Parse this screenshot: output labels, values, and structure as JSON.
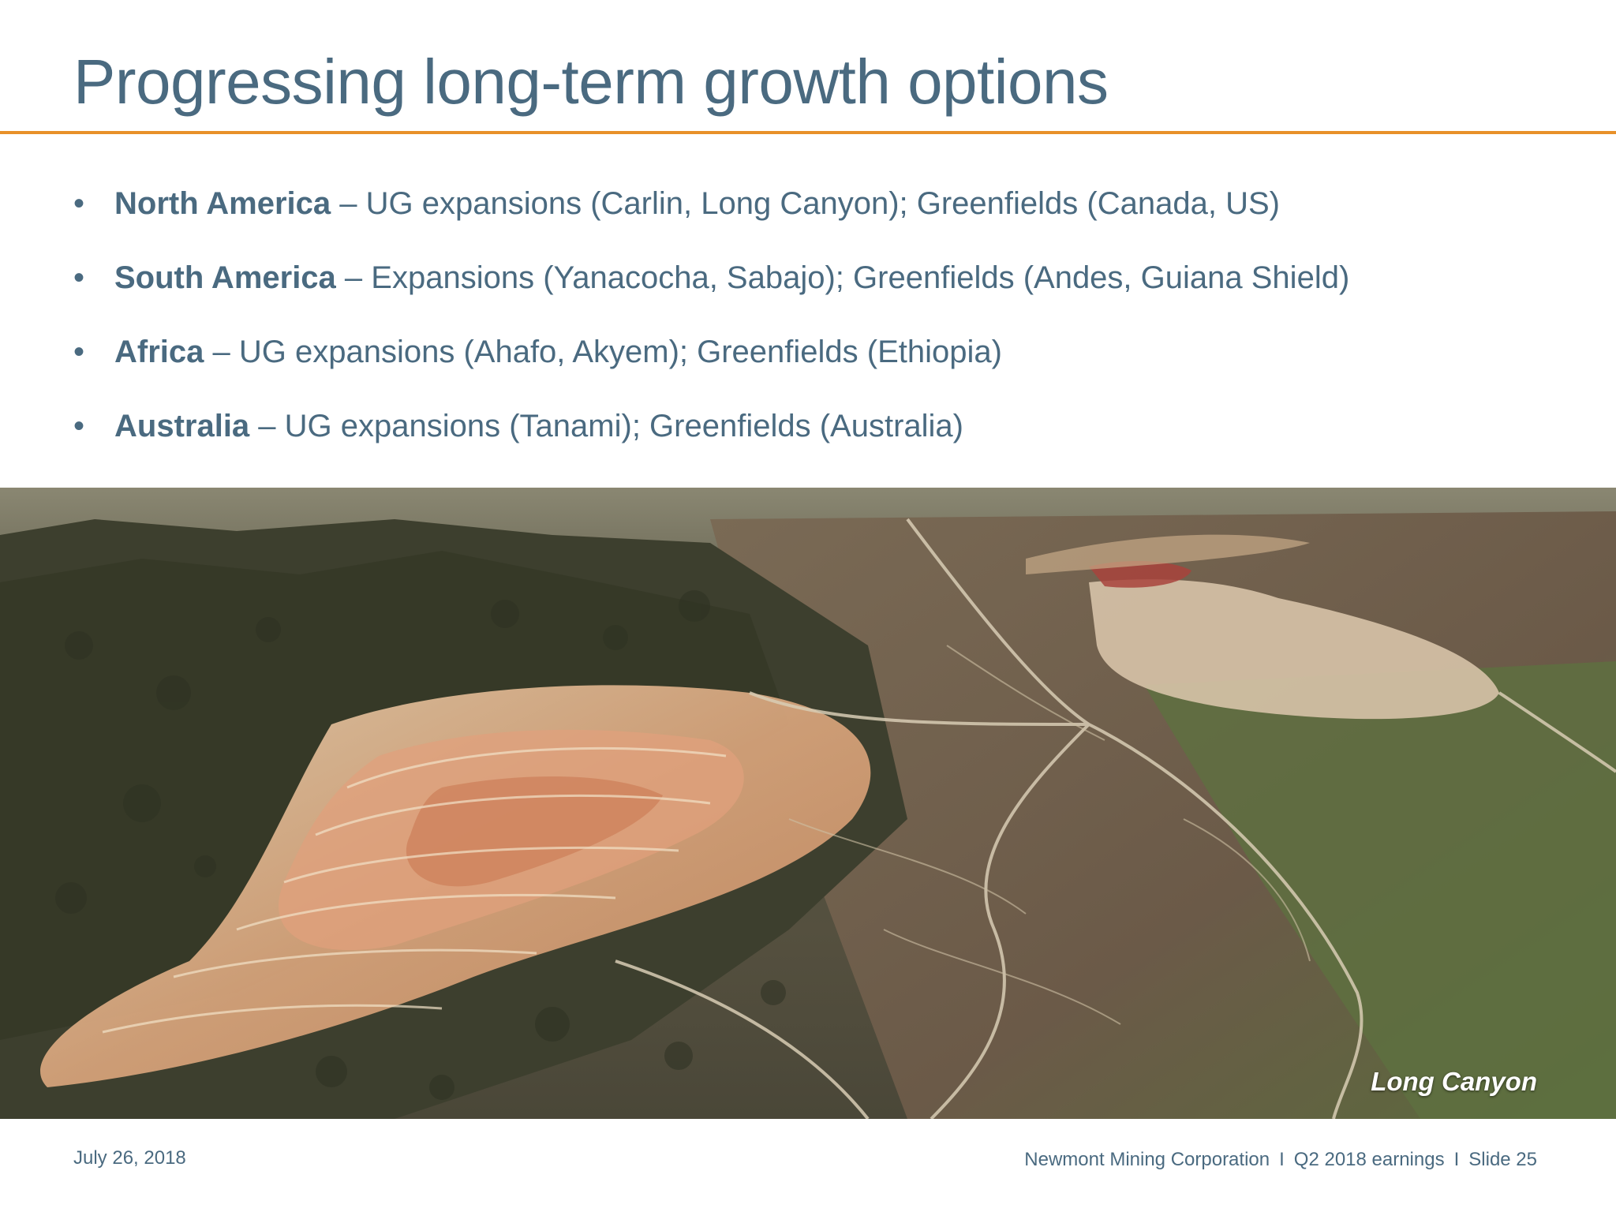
{
  "slide": {
    "title": "Progressing long-term growth options",
    "bullets": [
      {
        "marker": "•",
        "region": "North America",
        "detail": " – UG expansions (Carlin, Long Canyon); Greenfields (Canada, US)"
      },
      {
        "marker": "•",
        "region": "South America",
        "detail": " – Expansions (Yanacocha, Sabajo); Greenfields (Andes, Guiana Shield)"
      },
      {
        "marker": "•",
        "region": "Africa",
        "detail": " – UG expansions (Ahafo, Akyem); Greenfields (Ethiopia)"
      },
      {
        "marker": "•",
        "region": "Australia",
        "detail": " – UG expansions (Tanami); Greenfields (Australia)"
      }
    ],
    "photo_caption": "Long Canyon",
    "footer": {
      "date": "July 26, 2018",
      "company": "Newmont Mining Corporation",
      "separator": "I",
      "event": "Q2 2018 earnings",
      "slide_number": "Slide 25"
    }
  },
  "colors": {
    "title": "#4a6a80",
    "accent_rule": "#e8912a",
    "body_text": "#4a6a80"
  }
}
